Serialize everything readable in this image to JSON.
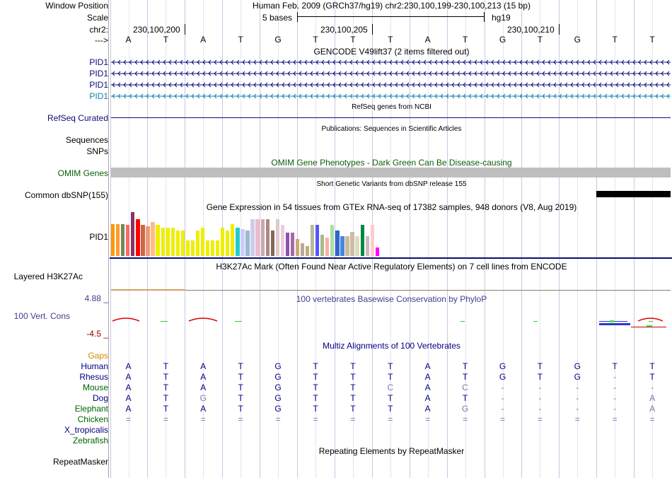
{
  "colors": {
    "gene_dark": "#0c0c78",
    "gene_teal": "#127ea8",
    "refseq": "#0c0c78",
    "omim": "#0a5d0a",
    "dbsnp": "#000000",
    "cons": "#404090",
    "cons_low": "#8b0000",
    "gaps": "#d08c00",
    "species_blue": "#000080",
    "species_green": "#006400",
    "species_black": "#000000",
    "h3k": "#a0522d"
  },
  "ruler": {
    "window_position_label": "Window Position",
    "scale_label": "Scale",
    "chr_label": "chr2:",
    "arrow_label": "--->",
    "title": "Human Feb. 2009 (GRCh37/hg19)   chr2:230,100,199-230,100,213 (15 bp)",
    "scale_text": "5 bases",
    "assembly": "hg19",
    "positions": [
      "230,100,200",
      "230,100,205",
      "230,100,210"
    ]
  },
  "bases": [
    "A",
    "T",
    "A",
    "T",
    "G",
    "T",
    "T",
    "T",
    "A",
    "T",
    "G",
    "T",
    "G",
    "T",
    "T"
  ],
  "gencode": {
    "title": "GENCODE V49lift37 (2 items filtered out)",
    "items": [
      "PID1",
      "PID1",
      "PID1",
      "PID1"
    ]
  },
  "refseq": {
    "label": "RefSeq Curated",
    "title": "RefSeq genes from NCBI"
  },
  "publications": {
    "title": "Publications: Sequences in Scientific Articles",
    "labels": [
      "Sequences",
      "SNPs"
    ]
  },
  "omim": {
    "label": "OMIM Genes",
    "title": "OMIM Gene Phenotypes - Dark Green Can Be Disease-causing"
  },
  "dbsnp": {
    "label": "Common dbSNP(155)",
    "title": "Short Genetic Variants from dbSNP release 155"
  },
  "gtex": {
    "label": "PID1",
    "title": "Gene Expression in 54 tissues from GTEx RNA-seq of 17382 samples, 948 donors (V8, Aug 2019)",
    "values": [
      45,
      45,
      45,
      44,
      62,
      52,
      44,
      42,
      48,
      44,
      40,
      40,
      40,
      36,
      36,
      22,
      22,
      36,
      40,
      22,
      22,
      22,
      40,
      36,
      45,
      40,
      38,
      36,
      52,
      52,
      52,
      52,
      36,
      52,
      44,
      33,
      33,
      24,
      18,
      14,
      44,
      44,
      30,
      26,
      44,
      36,
      28,
      28,
      34,
      28,
      44,
      28,
      44,
      12
    ],
    "colors": [
      "#ff9900",
      "#ff9933",
      "#778855",
      "#ff6666",
      "#883366",
      "#ff0000",
      "#cc6644",
      "#ee9977",
      "#ffbb88",
      "#eeee00",
      "#eeee00",
      "#eeee00",
      "#eeee00",
      "#eeee00",
      "#eeee00",
      "#eeee00",
      "#eeee00",
      "#eeee00",
      "#eeee00",
      "#eeee00",
      "#eeee00",
      "#eeee00",
      "#eeee00",
      "#eeee00",
      "#eeee00",
      "#22cccc",
      "#ccccff",
      "#99bbcc",
      "#ccccee",
      "#eebbcc",
      "#ccaaaa",
      "#aa8888",
      "#886655",
      "#ddcccc",
      "#eeccdd",
      "#8855aa",
      "#aa66aa",
      "#ccaa77",
      "#bbaa99",
      "#ccaa77",
      "#bbbb99",
      "#5555ff",
      "#aabb88",
      "#ffaaaa",
      "#aaddaa",
      "#3366cc",
      "#4488dd",
      "#ccbb99",
      "#ccbbaa",
      "#ddddbb",
      "#008844",
      "#ccbbbb",
      "#ffcccc",
      "#ff00ff"
    ]
  },
  "h3k27ac": {
    "label": "Layered H3K27Ac",
    "title": "H3K27Ac Mark (Often Found Near Active Regulatory Elements) on 7 cell lines from ENCODE"
  },
  "phylop": {
    "label": "100 Vert. Cons",
    "max": "4.88 _",
    "min": "-4.5 _",
    "title": "100 vertebrates Basewise Conservation by PhyloP"
  },
  "multiz": {
    "title": "Multiz Alignments of 100 Vertebrates",
    "gaps_label": "Gaps",
    "species": [
      {
        "name": "Human",
        "seq": [
          "A",
          "T",
          "A",
          "T",
          "G",
          "T",
          "T",
          "T",
          "A",
          "T",
          "G",
          "T",
          "G",
          "T",
          "T"
        ]
      },
      {
        "name": "Rhesus",
        "seq": [
          "A",
          "T",
          "A",
          "T",
          "G",
          "T",
          "T",
          "T",
          "A",
          "T",
          "G",
          "T",
          "G",
          "-",
          "T"
        ]
      },
      {
        "name": "Mouse",
        "seq": [
          "A",
          "T",
          "A",
          "T",
          "G",
          "T",
          "T",
          "C",
          "A",
          "C",
          "-",
          "-",
          "-",
          "-",
          "-"
        ]
      },
      {
        "name": "Dog",
        "seq": [
          "A",
          "T",
          "G",
          "T",
          "G",
          "T",
          "T",
          "T",
          "A",
          "T",
          "-",
          "-",
          "-",
          "-",
          "A"
        ]
      },
      {
        "name": "Elephant",
        "seq": [
          "A",
          "T",
          "A",
          "T",
          "G",
          "T",
          "T",
          "T",
          "A",
          "G",
          "-",
          "-",
          "-",
          "-",
          "A"
        ]
      },
      {
        "name": "Chicken",
        "seq": [
          "=",
          "=",
          "=",
          "=",
          "=",
          "=",
          "=",
          "=",
          "=",
          "=",
          "=",
          "=",
          "=",
          "=",
          "="
        ]
      },
      {
        "name": "X_tropicalis",
        "seq": []
      },
      {
        "name": "Zebrafish",
        "seq": []
      }
    ]
  },
  "repeatmasker": {
    "label": "RepeatMasker",
    "title": "Repeating Elements by RepeatMasker"
  }
}
